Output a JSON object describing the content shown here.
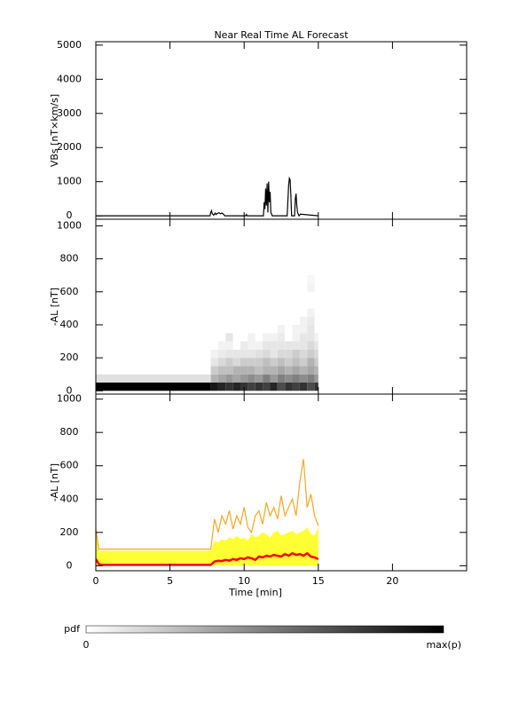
{
  "chart_data": [
    {
      "type": "line",
      "title": "Near Real Time AL Forecast",
      "ylabel": "VBs [nT×km/s]",
      "xlim": [
        0,
        25
      ],
      "xticks": [
        0,
        5,
        10,
        15,
        20
      ],
      "ylim": [
        -100,
        5100
      ],
      "yticks": [
        0,
        1000,
        2000,
        3000,
        4000,
        5000
      ],
      "x": [
        0,
        7.7,
        7.75,
        7.8,
        7.85,
        7.95,
        8.05,
        8.1,
        8.2,
        8.3,
        8.4,
        8.5,
        8.6,
        8.7,
        8.8,
        8.9,
        10.1,
        10.15,
        10.2,
        10.25,
        11.3,
        11.35,
        11.4,
        11.45,
        11.5,
        11.55,
        11.6,
        11.65,
        11.7,
        11.75,
        11.8,
        11.9,
        12.9,
        13.0,
        13.05,
        13.1,
        13.15,
        13.2,
        13.3,
        13.4,
        13.45,
        13.5,
        13.55,
        13.6,
        13.7,
        13.8,
        15
      ],
      "series": [
        {
          "color": "#000000",
          "values": [
            0,
            0,
            100,
            150,
            60,
            20,
            80,
            40,
            70,
            90,
            60,
            80,
            50,
            0,
            0,
            0,
            0,
            40,
            0,
            0,
            0,
            400,
            200,
            800,
            300,
            950,
            100,
            1000,
            400,
            700,
            100,
            0,
            0,
            900,
            1100,
            1050,
            600,
            0,
            0,
            0,
            500,
            650,
            300,
            100,
            0,
            50,
            0
          ]
        }
      ]
    },
    {
      "type": "heatmap",
      "ylabel": "-AL [nT]",
      "xlim": [
        0,
        25
      ],
      "xticks": [
        0,
        5,
        10,
        15,
        20
      ],
      "ylim": [
        -20,
        1040
      ],
      "yticks": [
        0,
        200,
        400,
        600,
        800,
        1000
      ],
      "x_edges": [
        0,
        7.75,
        8.25,
        8.75,
        9.25,
        9.75,
        10.25,
        10.75,
        11.25,
        11.75,
        12.25,
        12.75,
        13.25,
        13.75,
        14.25,
        14.75,
        15
      ],
      "y_edges": [
        0,
        50,
        100,
        150,
        200,
        250,
        300,
        350,
        400,
        450,
        500,
        550,
        600,
        650,
        700
      ],
      "values": [
        [
          1,
          0.12,
          0,
          0,
          0,
          0,
          0,
          0,
          0,
          0,
          0,
          0,
          0,
          0
        ],
        [
          0.9,
          0.3,
          0.2,
          0.1,
          0.05,
          0,
          0,
          0,
          0,
          0,
          0,
          0,
          0,
          0
        ],
        [
          0.85,
          0.35,
          0.25,
          0.15,
          0.08,
          0.05,
          0,
          0,
          0,
          0,
          0,
          0,
          0,
          0
        ],
        [
          0.8,
          0.4,
          0.25,
          0.2,
          0.1,
          0.05,
          0.1,
          0,
          0,
          0,
          0,
          0,
          0,
          0
        ],
        [
          0.85,
          0.35,
          0.3,
          0.15,
          0.1,
          0,
          0,
          0,
          0,
          0,
          0,
          0,
          0,
          0
        ],
        [
          0.8,
          0.4,
          0.3,
          0.2,
          0.1,
          0.08,
          0,
          0,
          0,
          0,
          0,
          0,
          0,
          0
        ],
        [
          0.75,
          0.45,
          0.3,
          0.2,
          0.1,
          0.05,
          0.05,
          0,
          0,
          0,
          0,
          0,
          0,
          0
        ],
        [
          0.8,
          0.4,
          0.25,
          0.2,
          0.12,
          0.05,
          0,
          0,
          0,
          0,
          0,
          0,
          0,
          0
        ],
        [
          0.75,
          0.5,
          0.3,
          0.25,
          0.15,
          0.1,
          0.05,
          0,
          0,
          0,
          0,
          0,
          0,
          0
        ],
        [
          0.85,
          0.4,
          0.3,
          0.2,
          0.1,
          0.1,
          0.05,
          0,
          0,
          0,
          0,
          0,
          0,
          0
        ],
        [
          0.7,
          0.5,
          0.35,
          0.25,
          0.15,
          0.1,
          0.08,
          0.05,
          0,
          0,
          0,
          0,
          0,
          0
        ],
        [
          0.8,
          0.45,
          0.3,
          0.2,
          0.15,
          0.1,
          0,
          0,
          0,
          0,
          0,
          0,
          0,
          0
        ],
        [
          0.75,
          0.5,
          0.35,
          0.25,
          0.2,
          0.1,
          0.05,
          0.05,
          0,
          0,
          0,
          0,
          0,
          0
        ],
        [
          0.8,
          0.45,
          0.3,
          0.2,
          0.15,
          0.1,
          0.1,
          0.05,
          0.05,
          0,
          0,
          0,
          0,
          0
        ],
        [
          0.7,
          0.5,
          0.35,
          0.3,
          0.2,
          0.15,
          0.1,
          0.1,
          0.08,
          0.05,
          0,
          0,
          0.05,
          0.03
        ],
        [
          0.8,
          0.4,
          0.3,
          0.2,
          0.15,
          0.1,
          0.05,
          0,
          0,
          0,
          0,
          0,
          0,
          0
        ]
      ],
      "colorbar": {
        "label": "pdf",
        "min_label": "0",
        "max_label": "max(p)"
      }
    },
    {
      "type": "line",
      "ylabel": "-AL [nT]",
      "xlabel": "Time [min]",
      "xlim": [
        0,
        25
      ],
      "xticks": [
        0,
        5,
        10,
        15,
        20
      ],
      "ylim": [
        -30,
        1030
      ],
      "yticks": [
        0,
        200,
        400,
        600,
        800,
        1000
      ],
      "x": [
        0,
        0.2,
        0.4,
        7.75,
        8,
        8.25,
        8.5,
        8.75,
        9,
        9.25,
        9.5,
        9.75,
        10,
        10.25,
        10.5,
        10.75,
        11,
        11.25,
        11.5,
        11.75,
        12,
        12.25,
        12.5,
        12.75,
        13,
        13.25,
        13.5,
        13.75,
        14,
        14.25,
        14.5,
        14.75,
        15
      ],
      "series": [
        {
          "color": "#ffff33",
          "area": true,
          "values": [
            200,
            90,
            90,
            90,
            150,
            140,
            160,
            150,
            170,
            160,
            180,
            160,
            170,
            150,
            190,
            170,
            180,
            200,
            190,
            170,
            200,
            210,
            180,
            190,
            200,
            210,
            190,
            200,
            210,
            230,
            190,
            180,
            230
          ]
        },
        {
          "color": "#f5a623",
          "values": [
            220,
            100,
            100,
            100,
            280,
            200,
            300,
            250,
            330,
            220,
            300,
            250,
            350,
            230,
            200,
            300,
            330,
            250,
            380,
            300,
            350,
            280,
            420,
            300,
            350,
            400,
            300,
            500,
            640,
            350,
            430,
            300,
            240
          ]
        },
        {
          "color": "#ff0000",
          "width": 2.5,
          "values": [
            40,
            10,
            5,
            5,
            25,
            30,
            28,
            35,
            30,
            40,
            35,
            45,
            40,
            50,
            45,
            35,
            55,
            50,
            60,
            55,
            65,
            60,
            55,
            70,
            60,
            75,
            65,
            70,
            60,
            75,
            55,
            50,
            40
          ]
        }
      ]
    }
  ]
}
